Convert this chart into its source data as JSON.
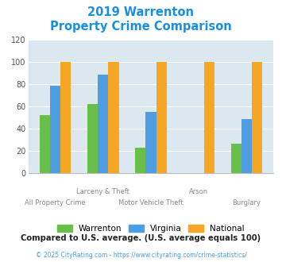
{
  "title_line1": "2019 Warrenton",
  "title_line2": "Property Crime Comparison",
  "groups": [
    "All Property Crime",
    "Larceny & Theft",
    "Motor Vehicle Theft",
    "Arson",
    "Burglary"
  ],
  "warrenton": [
    52,
    62,
    23,
    0,
    26
  ],
  "virginia": [
    78,
    88,
    55,
    0,
    48
  ],
  "national": [
    100,
    100,
    100,
    100,
    100
  ],
  "color_warrenton": "#6abf4b",
  "color_virginia": "#4d9de0",
  "color_national": "#f5a623",
  "bg_color": "#dce8f0",
  "ylim": [
    0,
    120
  ],
  "yticks": [
    0,
    20,
    40,
    60,
    80,
    100,
    120
  ],
  "title_color": "#1a8fe0",
  "subtitle_note": "Compared to U.S. average. (U.S. average equals 100)",
  "footnote": "© 2025 CityRating.com - https://www.cityrating.com/crime-statistics/",
  "subtitle_color": "#222222",
  "footnote_color": "#4d9de0",
  "x_top_labels": [
    "",
    "Larceny & Theft",
    "",
    "Arson",
    ""
  ],
  "x_bot_labels": [
    "All Property Crime",
    "",
    "Motor Vehicle Theft",
    "",
    "Burglary"
  ],
  "bar_width": 0.22
}
